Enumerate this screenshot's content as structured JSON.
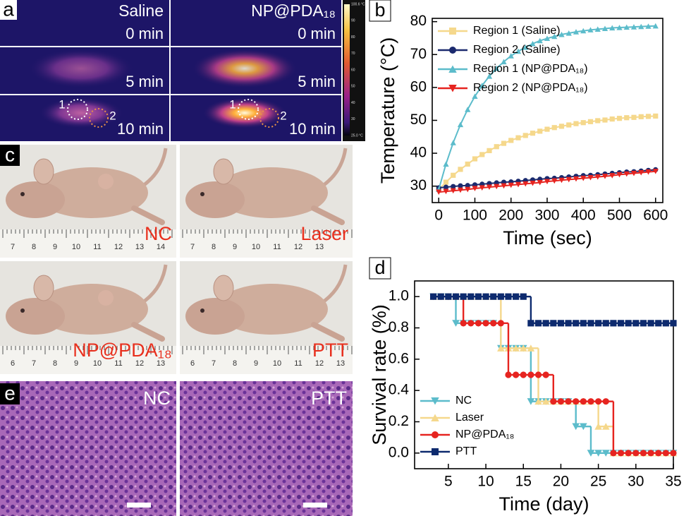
{
  "panels": {
    "a": {
      "letter": "a",
      "columns": [
        "Saline",
        "NP@PDA₁₈"
      ],
      "times": [
        "0 min",
        "5 min",
        "10 min"
      ],
      "regions": [
        "1",
        "2"
      ],
      "colorbar": [
        "100.6 °C",
        "90",
        "80",
        "70",
        "60",
        "50",
        "40",
        "30",
        "25.0 °C"
      ]
    },
    "c": {
      "letter": "c",
      "labels": [
        "NC",
        "Laser",
        "NP@PDA₁₈",
        "PTT"
      ],
      "rulers": [
        [
          7,
          8,
          9,
          10,
          11,
          12,
          13,
          14
        ],
        [
          7,
          8,
          9,
          10,
          11,
          12,
          13
        ],
        [
          6,
          7,
          8,
          9,
          10,
          11,
          12,
          13
        ],
        [
          6,
          7,
          8,
          9,
          10,
          11,
          12,
          13
        ]
      ]
    },
    "e": {
      "letter": "e",
      "labels": [
        "NC",
        "PTT"
      ]
    }
  },
  "chart_data": [
    {
      "type": "line",
      "panel_label": "b",
      "xlabel": "Time (sec)",
      "ylabel": "Temperature (°C)",
      "legend": "upper left",
      "x": [
        0,
        20,
        40,
        60,
        80,
        100,
        120,
        140,
        160,
        180,
        200,
        220,
        240,
        260,
        280,
        300,
        320,
        340,
        360,
        380,
        400,
        420,
        440,
        460,
        480,
        500,
        520,
        540,
        560,
        580,
        600
      ],
      "xlim": [
        -18,
        620
      ],
      "xticks": [
        0,
        100,
        200,
        300,
        400,
        500,
        600
      ],
      "ylim": [
        25,
        81
      ],
      "yticks": [
        30,
        40,
        50,
        60,
        70,
        80
      ],
      "series": [
        {
          "name": "Region 1 (Saline)",
          "color": "#f5d88c",
          "marker": "square",
          "values": [
            29.0,
            31.2,
            33.3,
            35.1,
            36.7,
            38.3,
            39.6,
            40.8,
            42.0,
            43.0,
            43.9,
            44.7,
            45.4,
            46.1,
            46.7,
            47.3,
            47.8,
            48.2,
            48.6,
            49.0,
            49.3,
            49.6,
            49.9,
            50.1,
            50.4,
            50.6,
            50.8,
            50.9,
            51.1,
            51.2,
            51.3
          ]
        },
        {
          "name": "Region 2 (Saline)",
          "color": "#1b2a6e",
          "marker": "circle",
          "values": [
            29.5,
            29.7,
            29.9,
            30.1,
            30.2,
            30.4,
            30.6,
            30.8,
            31.0,
            31.2,
            31.3,
            31.5,
            31.7,
            31.9,
            32.1,
            32.3,
            32.4,
            32.6,
            32.8,
            33.0,
            33.2,
            33.3,
            33.5,
            33.7,
            33.9,
            34.1,
            34.3,
            34.4,
            34.6,
            34.8,
            35.0
          ]
        },
        {
          "name": "Region 1 (NP@PDA₁₈)",
          "color": "#5cbccb",
          "marker": "triangle-up",
          "values": [
            29.0,
            36.7,
            43.2,
            48.7,
            53.3,
            57.3,
            60.6,
            63.4,
            65.8,
            67.8,
            69.6,
            71.0,
            72.2,
            73.3,
            74.2,
            74.9,
            75.5,
            76.1,
            76.5,
            76.9,
            77.2,
            77.5,
            77.7,
            77.9,
            78.1,
            78.2,
            78.3,
            78.4,
            78.5,
            78.6,
            78.7
          ]
        },
        {
          "name": "Region 2 (NP@PDA₁₈)",
          "color": "#e62420",
          "marker": "triangle-down",
          "values": [
            28.2,
            28.4,
            28.6,
            28.8,
            29.0,
            29.3,
            29.5,
            29.7,
            29.9,
            30.1,
            30.3,
            30.5,
            30.7,
            30.9,
            31.1,
            31.4,
            31.6,
            31.8,
            32.0,
            32.2,
            32.4,
            32.6,
            32.8,
            33.0,
            33.2,
            33.5,
            33.7,
            33.9,
            34.1,
            34.3,
            34.5
          ]
        }
      ]
    },
    {
      "type": "step",
      "panel_label": "d",
      "xlabel": "Time (day)",
      "ylabel": "Survival rate (%)",
      "legend": "lower left",
      "x": [
        3,
        4,
        5,
        6,
        7,
        8,
        9,
        10,
        11,
        12,
        13,
        14,
        15,
        16,
        17,
        18,
        19,
        20,
        21,
        22,
        23,
        24,
        25,
        26,
        27,
        28,
        29,
        30,
        31,
        32,
        33,
        34,
        35
      ],
      "xlim": [
        0.5,
        35
      ],
      "xticks": [
        5,
        10,
        15,
        20,
        25,
        30,
        35
      ],
      "ylim": [
        -0.1,
        1.1
      ],
      "yticks": [
        {
          "value": 0,
          "label": "0.0"
        },
        0.2,
        0.4,
        0.6,
        0.8,
        {
          "value": 1,
          "label": "1.0"
        }
      ],
      "series": [
        {
          "name": "NC",
          "color": "#5cbccb",
          "marker": "triangle-down",
          "values": [
            1,
            1,
            1,
            0.83,
            0.83,
            0.83,
            0.83,
            0.83,
            0.83,
            0.67,
            0.67,
            0.67,
            0.67,
            0.33,
            0.33,
            0.33,
            0.33,
            0.33,
            0.33,
            0.17,
            0.17,
            0,
            0,
            0,
            0,
            0,
            0,
            0,
            0,
            0,
            0,
            0,
            0
          ]
        },
        {
          "name": "Laser",
          "color": "#f5d88c",
          "marker": "triangle-up",
          "values": [
            1,
            1,
            1,
            1,
            1,
            1,
            1,
            1,
            1,
            0.67,
            0.67,
            0.67,
            0.67,
            0.67,
            0.33,
            0.33,
            0.33,
            0.33,
            0.33,
            0.33,
            0.33,
            0.33,
            0.17,
            0.17,
            0,
            0,
            0,
            0,
            0,
            0,
            0,
            0,
            0
          ]
        },
        {
          "name": "NP@PDA₁₈",
          "color": "#e62420",
          "marker": "circle",
          "values": [
            1,
            1,
            1,
            1,
            0.83,
            0.83,
            0.83,
            0.83,
            0.83,
            0.83,
            0.5,
            0.5,
            0.5,
            0.5,
            0.5,
            0.5,
            0.33,
            0.33,
            0.33,
            0.33,
            0.33,
            0.33,
            0.33,
            0.33,
            0,
            0,
            0,
            0,
            0,
            0,
            0,
            0,
            0
          ]
        },
        {
          "name": "PTT",
          "color": "#0d2a6e",
          "marker": "square",
          "values": [
            1,
            1,
            1,
            1,
            1,
            1,
            1,
            1,
            1,
            1,
            1,
            1,
            1,
            0.83,
            0.83,
            0.83,
            0.83,
            0.83,
            0.83,
            0.83,
            0.83,
            0.83,
            0.83,
            0.83,
            0.83,
            0.83,
            0.83,
            0.83,
            0.83,
            0.83,
            0.83,
            0.83,
            0.83
          ]
        }
      ]
    }
  ]
}
